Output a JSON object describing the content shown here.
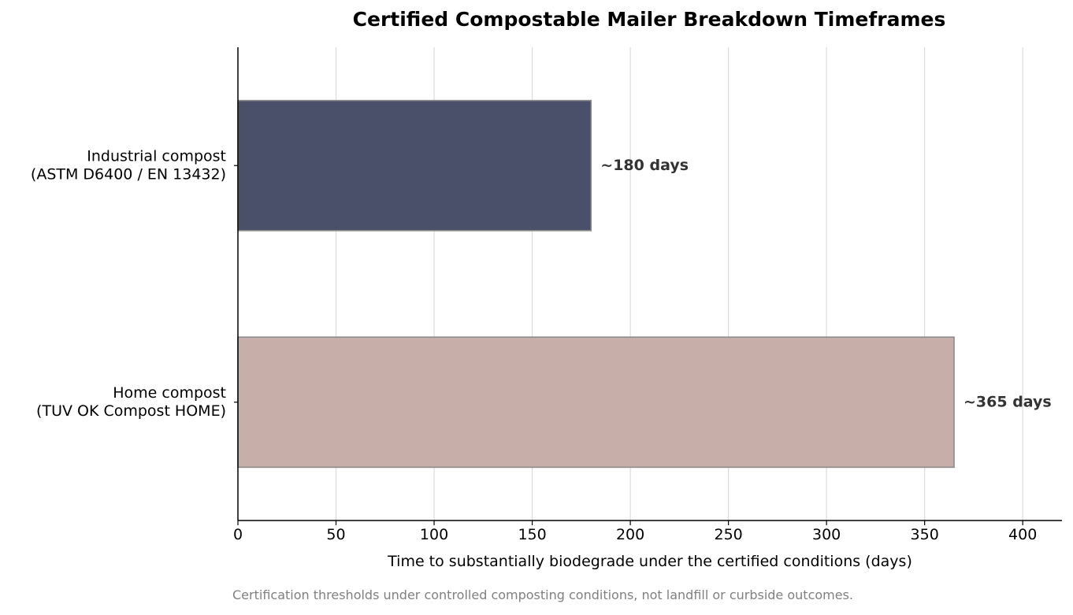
{
  "chart_data": {
    "type": "bar",
    "orientation": "horizontal",
    "title": "Certified Compostable Mailer Breakdown Timeframes",
    "xlabel": "Time to substantially biodegrade under the certified conditions (days)",
    "ylabel": "",
    "xlim": [
      0,
      420
    ],
    "xticks": [
      0,
      50,
      100,
      150,
      200,
      250,
      300,
      350,
      400
    ],
    "grid": "vertical",
    "categories": [
      [
        "Industrial compost",
        "(ASTM D6400 / EN 13432)"
      ],
      [
        "Home compost",
        "(TUV OK Compost HOME)"
      ]
    ],
    "values": [
      180,
      365
    ],
    "data_labels": [
      "~180 days",
      "~365 days"
    ],
    "colors": [
      "#4b506a",
      "#c8aea8"
    ],
    "bar_edge_color": "#8c8c8c",
    "footnote": "Certification thresholds under controlled composting conditions, not landfill or curbside outcomes."
  }
}
